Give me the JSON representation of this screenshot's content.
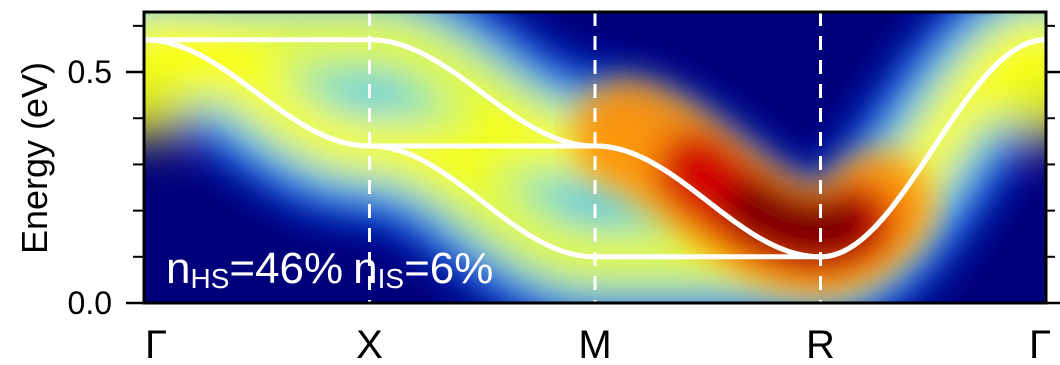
{
  "chart_data": {
    "type": "heatmap",
    "title": "",
    "ylabel": "Energy (eV)",
    "ylim": [
      0.0,
      0.63
    ],
    "yticks": [
      {
        "value": 0.0,
        "label": "0.0"
      },
      {
        "value": 0.5,
        "label": "0.5"
      }
    ],
    "yminor_ticks": [
      0.1,
      0.2,
      0.3,
      0.4,
      0.6
    ],
    "k_points": [
      "Γ",
      "X",
      "M",
      "R",
      "Γ"
    ],
    "dashed_vertical_lines_at": [
      "X",
      "M",
      "R"
    ],
    "bands": [
      {
        "name": "",
        "values": [
          0.57,
          0.57,
          0.34,
          0.1,
          0.57
        ]
      },
      {
        "name": "",
        "values": [
          0.57,
          0.34,
          0.34,
          0.1,
          0.57
        ]
      },
      {
        "name": "",
        "values": [
          0.57,
          0.34,
          0.1,
          0.1,
          0.57
        ]
      }
    ],
    "intensity_maxima": [
      {
        "k": "R",
        "energy": 0.2,
        "level": "high"
      },
      {
        "k": "Γ",
        "energy": 0.47,
        "level": "medium"
      }
    ],
    "colormap": [
      "#00007a",
      "#0000ff",
      "#00bfff",
      "#40e0c0",
      "#ffff00",
      "#ff8c00",
      "#d00000",
      "#7a0000"
    ],
    "annotation": {
      "n1_symbol": "n",
      "n1_sub": "HS",
      "n1_value": "=46%",
      "n2_symbol": "n",
      "n2_sub": "IS",
      "n2_value": "=6%"
    },
    "grid": false
  }
}
